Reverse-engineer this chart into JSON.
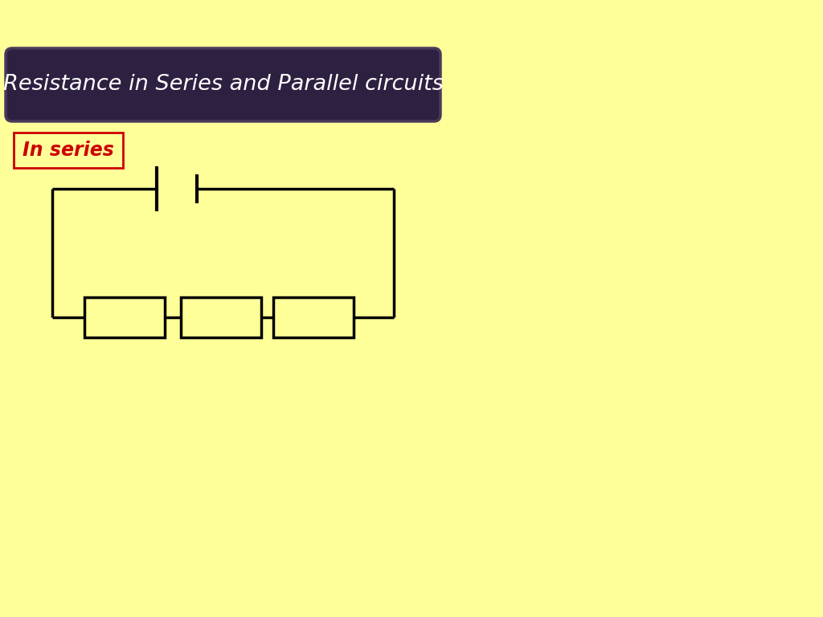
{
  "bg_color": "#FFFF99",
  "title_text": "Resistance in Series and Parallel circuits",
  "title_bg": "#2d2040",
  "title_fg": "#ffffff",
  "title_border": "#4a3a5a",
  "label_text": "In series",
  "label_color": "#cc0000",
  "label_border": "#cc0000",
  "circuit_color": "#000000",
  "circuit_linewidth": 2.5,
  "figsize": [
    10.24,
    7.68
  ],
  "dpi": 100
}
